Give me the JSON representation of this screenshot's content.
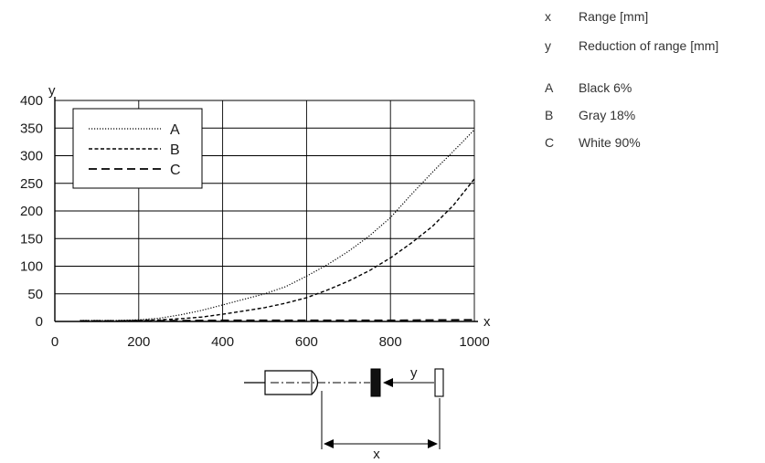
{
  "key_list": [
    {
      "symbol": "x",
      "text": "Range [mm]"
    },
    {
      "symbol": "y",
      "text": "Reduction of range [mm]"
    },
    {
      "symbol": "A",
      "text": "Black 6%"
    },
    {
      "symbol": "B",
      "text": "Gray 18%"
    },
    {
      "symbol": "C",
      "text": "White 90%"
    }
  ],
  "chart_data": {
    "type": "line",
    "title": "",
    "xlabel": "x",
    "ylabel": "y",
    "xlim": [
      0,
      1000
    ],
    "ylim": [
      0,
      400
    ],
    "x_ticks": [
      0,
      200,
      400,
      600,
      800,
      1000
    ],
    "y_ticks": [
      0,
      50,
      100,
      150,
      200,
      250,
      300,
      350,
      400
    ],
    "grid": true,
    "legend_position": "top-left",
    "series": [
      {
        "name": "A",
        "line_style": "dotted",
        "x": [
          60,
          100,
          150,
          200,
          250,
          300,
          350,
          400,
          450,
          500,
          550,
          600,
          650,
          700,
          750,
          800,
          850,
          900,
          950,
          1000
        ],
        "y": [
          2,
          2,
          2,
          3,
          6,
          12,
          20,
          30,
          40,
          50,
          63,
          82,
          103,
          127,
          155,
          188,
          230,
          270,
          308,
          347
        ]
      },
      {
        "name": "B",
        "line_style": "dashed",
        "x": [
          60,
          100,
          150,
          200,
          250,
          300,
          350,
          400,
          450,
          500,
          550,
          600,
          650,
          700,
          750,
          800,
          850,
          900,
          950,
          1000
        ],
        "y": [
          1,
          1,
          1,
          2,
          3,
          5,
          8,
          13,
          19,
          25,
          33,
          43,
          57,
          73,
          92,
          115,
          142,
          172,
          210,
          258
        ]
      },
      {
        "name": "C",
        "line_style": "long-dashed",
        "x": [
          60,
          200,
          400,
          600,
          800,
          1000
        ],
        "y": [
          1,
          1,
          2,
          2,
          2,
          3
        ]
      }
    ],
    "diagram": {
      "x_label": "x",
      "y_label": "y"
    }
  }
}
